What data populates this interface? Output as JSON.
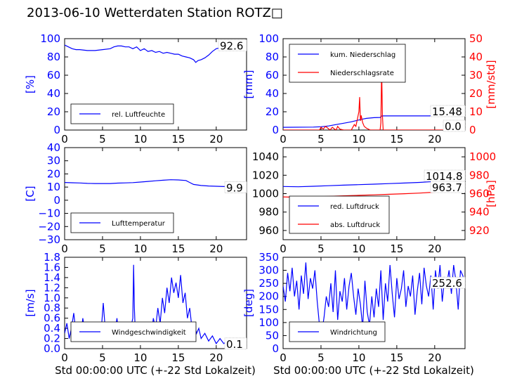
{
  "figure": {
    "title": "2013-06-10 Wetterdaten Station ROTZ□",
    "xlabel": "Std 00:00:00 UTC (+-22 Std Lokalzeit)"
  },
  "colors": {
    "blue": "#0000ff",
    "red": "#ff0000",
    "axis": "#000000"
  },
  "chart_data": [
    {
      "type": "line",
      "panel": "humidity",
      "ylabel": "[%]",
      "xlim": [
        0,
        24
      ],
      "ylim": [
        0,
        100
      ],
      "xticks": [
        "0",
        "5",
        "10",
        "15",
        "20"
      ],
      "yticks": [
        "0",
        "20",
        "40",
        "60",
        "80",
        "100"
      ],
      "legend_position": "bottom-left",
      "last_value_label": "92.6",
      "series": [
        {
          "name": "rel. Luftfeuchte",
          "color": "#0000ff",
          "x": [
            0,
            0.5,
            1,
            1.5,
            2,
            3,
            4,
            5,
            6,
            6.5,
            7,
            7.5,
            8,
            8.5,
            9,
            9.5,
            10,
            10.5,
            11,
            11.5,
            12,
            12.5,
            13,
            13.5,
            14,
            14.5,
            15,
            15.5,
            16,
            16.5,
            17,
            17.3,
            17.6,
            18,
            18.5,
            19,
            19.5,
            20,
            20.5,
            21,
            22,
            23,
            24
          ],
          "y": [
            93,
            91,
            89,
            88,
            88,
            87,
            87,
            88,
            89,
            91,
            92,
            92,
            91,
            91,
            89,
            91,
            87,
            89,
            86,
            87,
            85,
            86,
            84,
            85,
            84,
            83,
            83,
            81,
            80,
            79,
            77,
            74,
            76,
            77,
            79,
            82,
            86,
            89,
            90,
            91,
            92,
            92.5,
            92.6
          ]
        }
      ]
    },
    {
      "type": "line",
      "panel": "precipitation",
      "ylabel": "[mm]",
      "ylabel_right": "[mm/std]",
      "xlim": [
        0,
        24
      ],
      "ylim": [
        0,
        100
      ],
      "ylim_right": [
        0,
        50
      ],
      "xticks": [
        "0",
        "5",
        "10",
        "15",
        "20"
      ],
      "yticks": [
        "0",
        "20",
        "40",
        "60",
        "80",
        "100"
      ],
      "yticks_right": [
        "0",
        "10",
        "20",
        "30",
        "40",
        "50"
      ],
      "legend_position": "top-left",
      "last_value_labels": [
        "15.48",
        "0.0"
      ],
      "series": [
        {
          "name": "kum. Niederschlag",
          "color": "#0000ff",
          "axis": "left",
          "x": [
            0,
            4,
            5,
            6,
            7,
            8,
            9,
            10,
            10.5,
            11,
            12,
            12.8,
            13,
            13.2,
            14,
            16,
            18,
            20,
            22,
            24
          ],
          "y": [
            3,
            3.2,
            3.6,
            4.5,
            6,
            7.5,
            9,
            11,
            12,
            12.8,
            13.5,
            13.8,
            15.3,
            15.48,
            15.48,
            15.48,
            15.48,
            15.48,
            15.48,
            15.48
          ]
        },
        {
          "name": "Niederschlagsrate",
          "color": "#ff0000",
          "axis": "right",
          "x": [
            0,
            4.8,
            5,
            5.3,
            5.6,
            5.9,
            6.2,
            6.5,
            6.8,
            7.0,
            7.2,
            7.5,
            8,
            9.0,
            9.4,
            9.6,
            9.8,
            10.0,
            10.1,
            10.2,
            10.3,
            10.5,
            10.7,
            11.0,
            11.5,
            12,
            12.8,
            12.9,
            13.0,
            13.1,
            13.2,
            13.4,
            14,
            24
          ],
          "y": [
            0,
            0,
            1.5,
            0.5,
            2,
            1,
            0,
            1.5,
            0.5,
            0,
            2,
            0.5,
            0,
            0,
            3,
            2,
            6,
            10,
            18,
            5,
            8,
            4,
            2,
            1,
            0,
            0,
            0,
            4,
            34,
            8,
            0,
            0,
            0,
            0
          ]
        }
      ]
    },
    {
      "type": "line",
      "panel": "temperature",
      "ylabel": "[C]",
      "xlim": [
        0,
        24
      ],
      "ylim": [
        -30,
        40
      ],
      "xticks": [
        "0",
        "5",
        "10",
        "15",
        "20"
      ],
      "yticks": [
        "−30",
        "−20",
        "−10",
        "0",
        "10",
        "20",
        "30",
        "40"
      ],
      "legend_position": "bottom-left",
      "last_value_label": "9.9",
      "series": [
        {
          "name": "Lufttemperatur",
          "color": "#0000ff",
          "x": [
            0,
            1,
            2,
            3,
            4,
            5,
            6,
            7,
            8,
            9,
            10,
            11,
            12,
            13,
            14,
            15,
            16,
            16.5,
            17,
            18,
            19,
            20,
            21,
            22,
            23,
            24
          ],
          "y": [
            13.5,
            13.3,
            13.1,
            12.8,
            12.7,
            12.7,
            12.7,
            13.0,
            13.2,
            13.4,
            13.8,
            14.3,
            14.8,
            15.2,
            15.6,
            15.4,
            15.0,
            13.5,
            12.0,
            11.2,
            10.8,
            10.6,
            10.4,
            10.2,
            10.0,
            9.9
          ]
        }
      ]
    },
    {
      "type": "line",
      "panel": "pressure",
      "ylabel_right": "[hPa]",
      "xlim": [
        0,
        24
      ],
      "ylim": [
        950,
        1050
      ],
      "ylim_right": [
        910,
        1010
      ],
      "xticks": [
        "0",
        "5",
        "10",
        "15",
        "20"
      ],
      "yticks": [
        "960",
        "980",
        "1000",
        "1020",
        "1040"
      ],
      "yticks_right": [
        "920",
        "940",
        "960",
        "980",
        "1000"
      ],
      "legend_position": "bottom-left",
      "last_value_labels": [
        "1014.8",
        "963.7"
      ],
      "series": [
        {
          "name": "red. Luftdruck",
          "color": "#0000ff",
          "axis": "left",
          "x": [
            0,
            2,
            4,
            6,
            8,
            10,
            12,
            14,
            16,
            18,
            20,
            22,
            24
          ],
          "y": [
            1007.8,
            1007.5,
            1008.0,
            1008.6,
            1009.2,
            1009.8,
            1010.3,
            1010.9,
            1011.5,
            1012.2,
            1013.2,
            1014.2,
            1014.8
          ]
        },
        {
          "name": "abs. Luftdruck",
          "color": "#ff0000",
          "axis": "right",
          "x": [
            0,
            2,
            4,
            6,
            8,
            10,
            12,
            14,
            16,
            18,
            20,
            22,
            24
          ],
          "y": [
            956.5,
            956.0,
            956.5,
            957.0,
            957.6,
            958.2,
            958.7,
            959.3,
            959.9,
            960.6,
            961.6,
            962.8,
            963.7
          ]
        }
      ]
    },
    {
      "type": "line",
      "panel": "wind-speed",
      "ylabel": "[m/s]",
      "xlim": [
        0,
        24
      ],
      "ylim": [
        0,
        1.8
      ],
      "xticks": [
        "0",
        "5",
        "10",
        "15",
        "20"
      ],
      "yticks": [
        "0.0",
        "0.2",
        "0.4",
        "0.6",
        "0.8",
        "1.0",
        "1.2",
        "1.4",
        "1.6",
        "1.8"
      ],
      "legend_position": "bottom-left",
      "last_value_label": "0.1",
      "series": [
        {
          "name": "Windgeschwindigkeit",
          "color": "#0000ff",
          "x": [
            0,
            0.3,
            0.6,
            0.9,
            1.2,
            1.5,
            1.8,
            2.1,
            2.4,
            2.7,
            3.0,
            3.3,
            3.6,
            3.9,
            4.2,
            4.5,
            4.8,
            5.1,
            5.4,
            5.7,
            6.0,
            6.3,
            6.6,
            6.9,
            7.2,
            7.5,
            7.8,
            8.1,
            8.4,
            8.7,
            9.0,
            9.1,
            9.2,
            9.3,
            9.6,
            9.9,
            10.2,
            10.5,
            10.8,
            11.1,
            11.4,
            11.7,
            12.0,
            12.3,
            12.6,
            12.9,
            13.2,
            13.5,
            13.8,
            14.1,
            14.4,
            14.7,
            15.0,
            15.3,
            15.6,
            15.9,
            16.2,
            16.5,
            16.8,
            17.1,
            17.4,
            17.7,
            18.0,
            18.5,
            19.0,
            19.5,
            20.0,
            20.5,
            21.0,
            21.5,
            22.0,
            22.5,
            23.0,
            23.5,
            24.0
          ],
          "y": [
            0.3,
            0.5,
            0.2,
            0.4,
            0.7,
            0.3,
            0.5,
            0.2,
            0.6,
            0.3,
            0.4,
            0.2,
            0.5,
            0.3,
            0.2,
            0.4,
            0.3,
            0.9,
            0.3,
            0.5,
            0.2,
            0.4,
            0.3,
            0.6,
            0.2,
            0.4,
            0.3,
            0.5,
            0.2,
            0.4,
            0.6,
            1.65,
            0.8,
            0.4,
            0.3,
            0.5,
            0.2,
            0.4,
            0.3,
            0.5,
            0.2,
            0.6,
            0.4,
            0.8,
            0.5,
            1.0,
            0.7,
            1.2,
            0.9,
            1.4,
            1.1,
            1.3,
            1.0,
            1.45,
            0.9,
            1.1,
            0.6,
            0.8,
            0.4,
            0.5,
            0.3,
            0.4,
            0.2,
            0.3,
            0.15,
            0.25,
            0.1,
            0.2,
            0.1,
            0.15,
            0.08,
            0.2,
            0.1,
            0.15,
            0.1
          ]
        }
      ]
    },
    {
      "type": "line",
      "panel": "wind-direction",
      "ylabel": "[deg]",
      "xlim": [
        0,
        24
      ],
      "ylim": [
        0,
        350
      ],
      "xticks": [
        "0",
        "5",
        "10",
        "15",
        "20"
      ],
      "yticks": [
        "0",
        "50",
        "100",
        "150",
        "200",
        "250",
        "300",
        "350"
      ],
      "legend_position": "bottom-left",
      "last_value_label": "252.6",
      "series": [
        {
          "name": "Windrichtung",
          "color": "#0000ff",
          "x": [
            0,
            0.3,
            0.6,
            0.9,
            1.2,
            1.5,
            1.8,
            2.1,
            2.4,
            2.7,
            3.0,
            3.3,
            3.6,
            3.9,
            4.2,
            4.5,
            4.8,
            5.1,
            5.4,
            5.7,
            6.0,
            6.3,
            6.6,
            6.9,
            7.2,
            7.5,
            7.8,
            8.1,
            8.4,
            8.7,
            9.0,
            9.3,
            9.6,
            9.9,
            10.2,
            10.5,
            10.8,
            11.1,
            11.4,
            11.7,
            12.0,
            12.3,
            12.6,
            12.9,
            13.2,
            13.5,
            13.8,
            14.1,
            14.4,
            14.7,
            15.0,
            15.3,
            15.6,
            15.9,
            16.2,
            16.5,
            16.8,
            17.1,
            17.4,
            17.7,
            18.0,
            18.3,
            18.6,
            18.9,
            19.2,
            19.5,
            19.8,
            20.1,
            20.4,
            20.7,
            21.0,
            21.3,
            21.6,
            21.9,
            22.2,
            22.5,
            22.8,
            23.1,
            23.4,
            23.7,
            24.0
          ],
          "y": [
            240,
            180,
            290,
            220,
            310,
            200,
            260,
            150,
            280,
            210,
            330,
            190,
            270,
            230,
            300,
            180,
            90,
            60,
            120,
            200,
            160,
            250,
            140,
            300,
            110,
            220,
            180,
            270,
            150,
            240,
            290,
            200,
            130,
            230,
            170,
            80,
            260,
            140,
            90,
            200,
            120,
            230,
            160,
            300,
            110,
            250,
            180,
            320,
            210,
            120,
            270,
            190,
            230,
            300,
            160,
            240,
            200,
            280,
            130,
            220,
            290,
            170,
            310,
            240,
            200,
            280,
            150,
            300,
            230,
            320,
            180,
            270,
            250,
            300,
            210,
            320,
            260,
            150,
            300,
            280,
            252.6
          ]
        }
      ]
    }
  ]
}
